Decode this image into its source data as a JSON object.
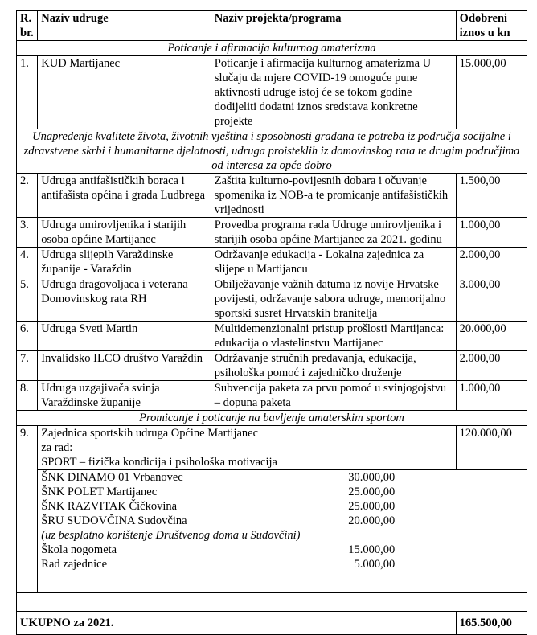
{
  "header": {
    "num": "R. br.",
    "org": "Naziv udruge",
    "project": "Naziv projekta/programa",
    "amount": "Odobreni iznos u kn"
  },
  "sections": [
    {
      "title": "Poticanje i afirmacija kulturnog amaterizma"
    },
    {
      "title": "Unapređenje kvalitete života, životnih vještina i sposobnosti građana te potreba iz područja socijalne i zdravstvene skrbi i humanitarne djelatnosti, udruga proisteklih iz domovinskog rata te drugim područjima od interesa za opće dobro"
    },
    {
      "title": "Promicanje i poticanje na bavljenje amaterskim sportom"
    }
  ],
  "rows": [
    {
      "num": "1.",
      "org": "KUD Martijanec",
      "project": "Poticanje i afirmacija kulturnog amaterizma U slučaju da mjere COVID-19 omoguće pune aktivnosti udruge istoj će se tokom godine dodijeliti dodatni iznos sredstava konkretne projekte",
      "amount": "15.000,00"
    },
    {
      "num": "2.",
      "org": "Udruga antifašističkih boraca i antifašista općina i grada Ludbrega",
      "project": "Zaštita kulturno-povijesnih dobara i očuvanje spomenika iz NOB-a te promicanje antifašističkih vrijednosti",
      "amount": "1.500,00"
    },
    {
      "num": "3.",
      "org": "Udruga umirovljenika i starijih osoba općine Martijanec",
      "project": "Provedba programa rada Udruge umirovljenika i starijih osoba općine Martijanec za 2021. godinu",
      "amount": "1.000,00"
    },
    {
      "num": "4.",
      "org": "Udruga slijepih Varaždinske županije - Varaždin",
      "project": "Održavanje edukacija - Lokalna zajednica za slijepe u Martijancu",
      "amount": "2.000,00"
    },
    {
      "num": "5.",
      "org": "Udruga dragovoljaca i veterana Domovinskog rata RH",
      "project": "Obilježavanje važnih datuma iz novije Hrvatske povijesti, održavanje sabora udruge, memorijalno sportski susret Hrvatskih branitelja",
      "amount": "3.000,00"
    },
    {
      "num": "6.",
      "org": "Udruga Sveti Martin",
      "project": "Multidemenzionalni pristup prošlosti Martijanca: edukacija o vlastelinstvu Martijanec",
      "amount": "20.000,00"
    },
    {
      "num": "7.",
      "org": "Invalidsko ILCO društvo Varaždin",
      "project": "Održavanje stručnih predavanja, edukacija, psihološka pomoć i zajedničko druženje",
      "amount": "2.000,00"
    },
    {
      "num": "8.",
      "org": "Udruga uzgajivača svinja Varaždinske županije",
      "project": "Subvencija paketa za prvu pomoć u svinjogojstvu – dopuna paketa",
      "amount": "1.000,00"
    }
  ],
  "row9": {
    "num": "9.",
    "lines": [
      "Zajednica sportskih udruga Općine Martijanec",
      "za rad:",
      "SPORT – fizička kondicija i psihološka motivacija"
    ],
    "amount": "120.000,00",
    "items": [
      {
        "name": "ŠNK DINAMO 01 Vrbanovec",
        "amount": "30.000,00"
      },
      {
        "name": "ŠNK POLET Martijanec",
        "amount": "25.000,00"
      },
      {
        "name": "ŠNK RAZVITAK Čičkovina",
        "amount": "25.000,00"
      },
      {
        "name": "ŠRU SUDOVČINA Sudovčina",
        "amount": "20.000,00"
      },
      {
        "name": "(uz besplatno korištenje Društvenog doma u Sudovčini)",
        "amount": ""
      },
      {
        "name": "Škola nogometa",
        "amount": "15.000,00"
      },
      {
        "name": "Rad zajednice",
        "amount": "5.000,00"
      }
    ]
  },
  "total": {
    "label": "UKUPNO za 2021.",
    "amount": "165.500,00"
  }
}
